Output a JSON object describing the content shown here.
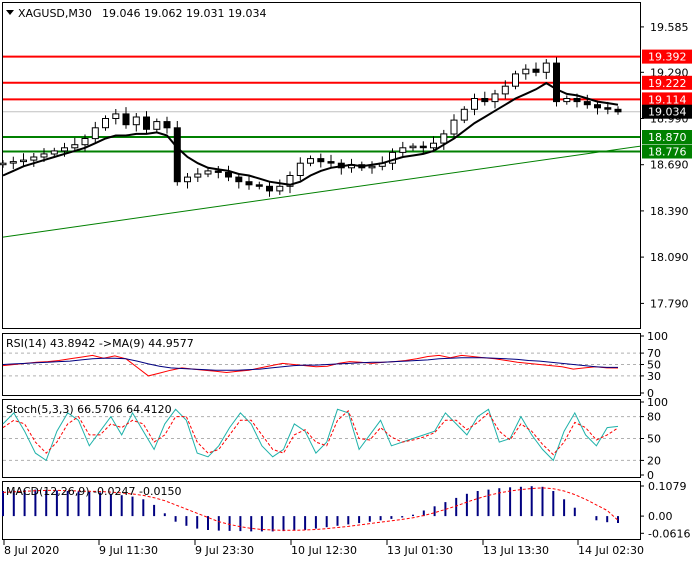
{
  "header": {
    "symbol": "XAGUSD,M30",
    "ohlc": "19.046 19.062 19.031 19.034"
  },
  "chart_data": [
    {
      "type": "candlestick",
      "panel": "price",
      "y_axis_ticks": [
        "19.585",
        "19.290",
        "18.990",
        "18.690",
        "18.390",
        "18.090",
        "17.790"
      ],
      "y_range": [
        17.63,
        19.74
      ],
      "current_price": {
        "value": 19.034,
        "label": "19.034",
        "color": "#000000"
      },
      "resistance_levels": [
        {
          "value": 19.392,
          "label": "19.392",
          "color": "#ff0000"
        },
        {
          "value": 19.222,
          "label": "19.222",
          "color": "#ff0000"
        },
        {
          "value": 19.114,
          "label": "19.114",
          "color": "#ff0000"
        }
      ],
      "support_levels": [
        {
          "value": 18.87,
          "label": "18.870",
          "color": "#008000"
        },
        {
          "value": 18.776,
          "label": "18.776",
          "color": "#008000"
        }
      ],
      "trendline": {
        "from": 18.22,
        "to": 18.81,
        "color": "#008000"
      },
      "close_path": [
        18.7,
        18.71,
        18.72,
        18.74,
        18.76,
        18.78,
        18.8,
        18.82,
        18.86,
        18.93,
        18.99,
        19.02,
        18.95,
        19.0,
        18.92,
        18.97,
        18.93,
        18.58,
        18.61,
        18.63,
        18.65,
        18.64,
        18.61,
        18.58,
        18.56,
        18.55,
        18.52,
        18.55,
        18.62,
        18.7,
        18.73,
        18.71,
        18.7,
        18.67,
        18.69,
        18.67,
        18.68,
        18.7,
        18.77,
        18.8,
        18.81,
        18.8,
        18.83,
        18.89,
        18.98,
        19.05,
        19.12,
        19.1,
        19.15,
        19.2,
        19.28,
        19.31,
        19.29,
        19.35,
        19.1,
        19.12,
        19.1,
        19.08,
        19.06,
        19.05,
        19.034
      ],
      "ma_path": [
        18.62,
        18.65,
        18.68,
        18.7,
        18.72,
        18.74,
        18.76,
        18.78,
        18.8,
        18.83,
        18.86,
        18.88,
        18.88,
        18.89,
        18.89,
        18.9,
        18.88,
        18.8,
        18.74,
        18.7,
        18.67,
        18.66,
        18.65,
        18.63,
        18.62,
        18.6,
        18.58,
        18.57,
        18.56,
        18.58,
        18.62,
        18.65,
        18.67,
        18.68,
        18.69,
        18.68,
        18.69,
        18.7,
        18.72,
        18.74,
        18.75,
        18.76,
        18.78,
        18.82,
        18.86,
        18.91,
        18.96,
        19.0,
        19.04,
        19.08,
        19.12,
        19.15,
        19.18,
        19.22,
        19.18,
        19.15,
        19.14,
        19.12,
        19.1,
        19.09,
        19.08
      ],
      "colors": {
        "candle": "#000000",
        "ma": "#000000"
      }
    },
    {
      "type": "line",
      "panel": "rsi",
      "label": "RSI(14) 43.8942 ->MA(9) 44.9577",
      "y_axis_ticks": [
        "100",
        "70",
        "50",
        "30",
        "0"
      ],
      "levels": [
        70,
        50,
        30
      ],
      "series": [
        {
          "name": "RSI(14)",
          "color": "#ff0000",
          "values": [
            48,
            50,
            52,
            54,
            55,
            57,
            60,
            63,
            66,
            61,
            65,
            60,
            45,
            30,
            35,
            40,
            44,
            42,
            40,
            38,
            36,
            38,
            40,
            44,
            48,
            52,
            50,
            48,
            46,
            47,
            52,
            55,
            54,
            52,
            54,
            55,
            57,
            60,
            64,
            66,
            62,
            66,
            64,
            62,
            60,
            57,
            54,
            52,
            50,
            48,
            46,
            42,
            44,
            46,
            44,
            43.8942
          ]
        },
        {
          "name": "MA(9)",
          "color": "#000080",
          "values": [
            50,
            51,
            52,
            53,
            54,
            55,
            56,
            58,
            60,
            61,
            61,
            60,
            56,
            51,
            47,
            44,
            43,
            42,
            41,
            40,
            40,
            40,
            41,
            42,
            44,
            46,
            48,
            49,
            49,
            50,
            51,
            52,
            53,
            54,
            54,
            55,
            56,
            57,
            58,
            60,
            61,
            62,
            62,
            62,
            61,
            60,
            59,
            57,
            56,
            54,
            52,
            50,
            48,
            46,
            45,
            44.9577
          ]
        }
      ]
    },
    {
      "type": "line",
      "panel": "stoch",
      "label": "Stoch(5,3,3) 66.5706 64.4120",
      "y_axis_ticks": [
        "100",
        "80",
        "50",
        "20",
        "0"
      ],
      "levels": [
        80,
        50,
        20
      ],
      "series": [
        {
          "name": "Stoch %K",
          "color": "#20b2aa",
          "values": [
            70,
            85,
            60,
            30,
            20,
            60,
            85,
            75,
            40,
            60,
            80,
            55,
            85,
            60,
            35,
            70,
            90,
            75,
            30,
            25,
            40,
            65,
            85,
            70,
            40,
            25,
            35,
            70,
            60,
            30,
            45,
            90,
            85,
            35,
            55,
            75,
            40,
            45,
            50,
            55,
            60,
            85,
            70,
            55,
            80,
            90,
            45,
            50,
            80,
            55,
            35,
            20,
            60,
            85,
            55,
            40,
            65,
            66.5706
          ]
        },
        {
          "name": "Stoch %D",
          "color": "#ff0000",
          "values": [
            65,
            75,
            70,
            45,
            30,
            45,
            70,
            80,
            55,
            55,
            70,
            65,
            75,
            70,
            45,
            55,
            80,
            80,
            45,
            30,
            35,
            55,
            75,
            75,
            55,
            35,
            30,
            55,
            62,
            45,
            40,
            75,
            88,
            50,
            48,
            65,
            52,
            45,
            48,
            52,
            58,
            75,
            75,
            62,
            72,
            85,
            60,
            48,
            70,
            60,
            42,
            28,
            45,
            72,
            65,
            48,
            55,
            64.412
          ]
        }
      ]
    },
    {
      "type": "bar",
      "panel": "macd",
      "label": "MACD(12,26,9) -0.0247 -0.0150",
      "y_axis_ticks": [
        "0.1079",
        "0.00",
        "-0.0616"
      ],
      "y_range": [
        -0.075,
        0.115
      ],
      "series": [
        {
          "name": "MACD",
          "color": "#000080",
          "values": [
            0.09,
            0.092,
            0.094,
            0.095,
            0.094,
            0.092,
            0.09,
            0.088,
            0.087,
            0.085,
            0.08,
            0.075,
            0.07,
            0.06,
            0.04,
            0.01,
            -0.02,
            -0.035,
            -0.045,
            -0.05,
            -0.052,
            -0.053,
            -0.054,
            -0.055,
            -0.055,
            -0.055,
            -0.054,
            -0.052,
            -0.05,
            -0.045,
            -0.04,
            -0.035,
            -0.03,
            -0.025,
            -0.02,
            -0.015,
            -0.01,
            -0.005,
            0.005,
            0.02,
            0.035,
            0.05,
            0.065,
            0.08,
            0.09,
            0.095,
            0.1,
            0.103,
            0.105,
            0.107,
            0.105,
            0.09,
            0.06,
            0.03,
            0.0,
            -0.015,
            -0.022,
            -0.0247
          ]
        },
        {
          "name": "Signal",
          "color": "#ff0000",
          "values": [
            0.085,
            0.087,
            0.089,
            0.091,
            0.092,
            0.092,
            0.091,
            0.09,
            0.089,
            0.088,
            0.086,
            0.083,
            0.079,
            0.074,
            0.066,
            0.055,
            0.04,
            0.025,
            0.01,
            -0.005,
            -0.02,
            -0.03,
            -0.038,
            -0.044,
            -0.048,
            -0.05,
            -0.051,
            -0.051,
            -0.05,
            -0.048,
            -0.045,
            -0.041,
            -0.037,
            -0.032,
            -0.027,
            -0.022,
            -0.017,
            -0.012,
            -0.006,
            0.002,
            0.012,
            0.024,
            0.036,
            0.05,
            0.063,
            0.074,
            0.083,
            0.09,
            0.095,
            0.099,
            0.101,
            0.098,
            0.09,
            0.077,
            0.06,
            0.04,
            0.02,
            -0.015
          ]
        }
      ]
    }
  ],
  "x_axis": {
    "labels": [
      "8 Jul 2020",
      "9 Jul 11:30",
      "9 Jul 23:30",
      "10 Jul 12:30",
      "13 Jul 01:30",
      "13 Jul 13:30",
      "14 Jul 02:30"
    ]
  }
}
